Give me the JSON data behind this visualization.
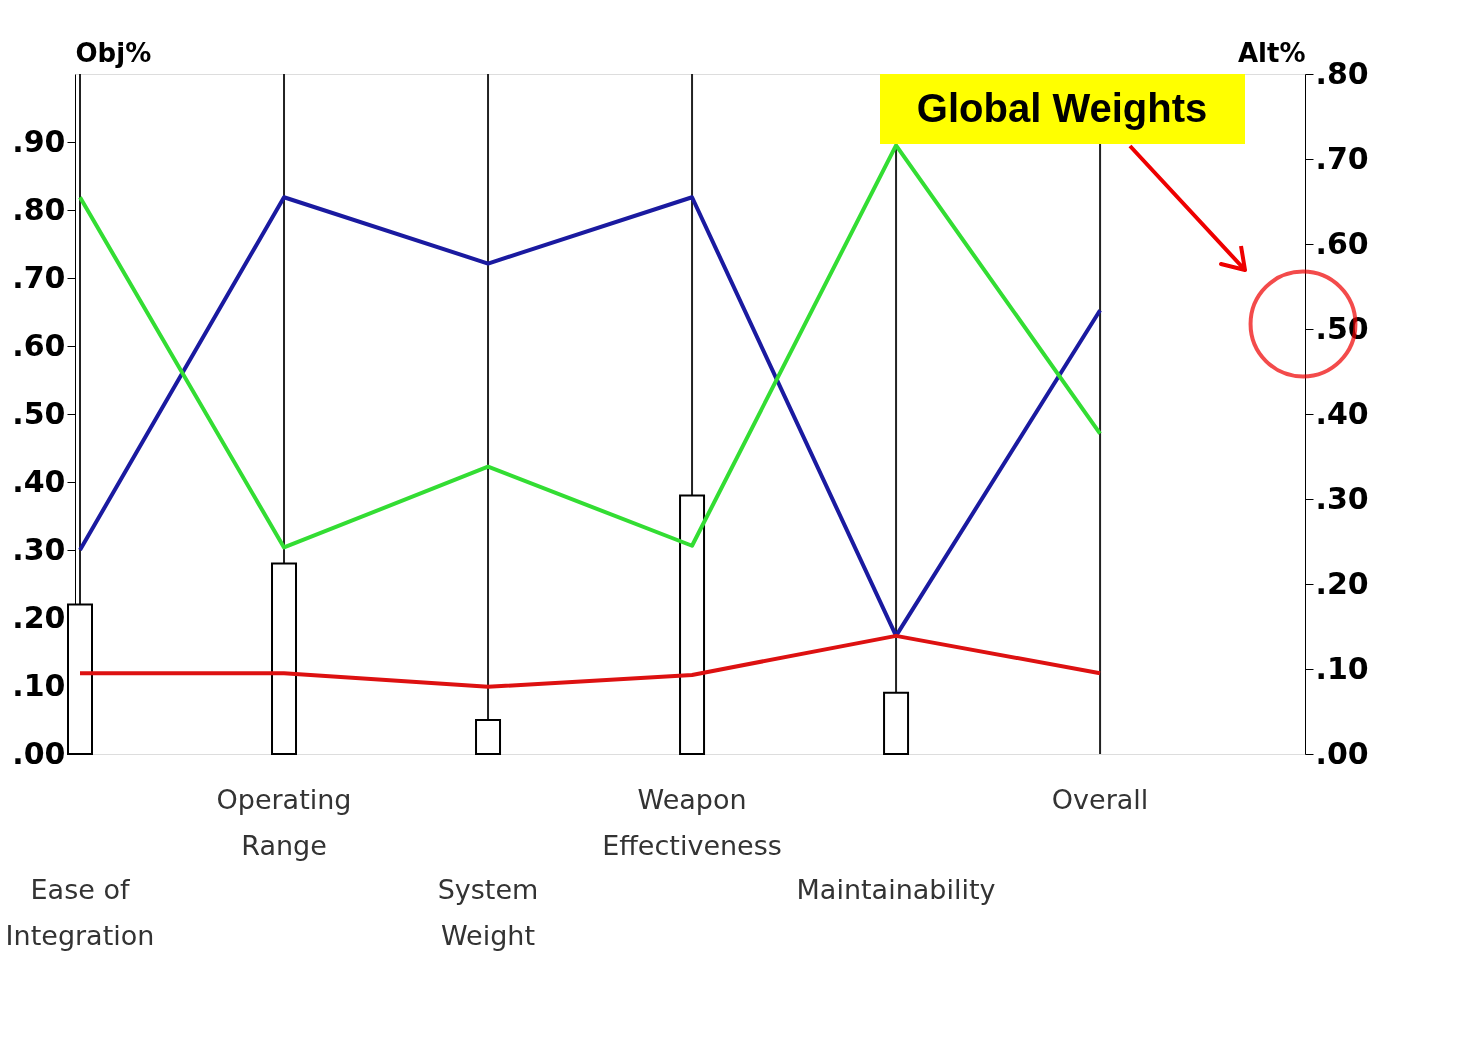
{
  "chart_data": {
    "type": "line",
    "categories": [
      "Ease of\nIntegration",
      "Operating\nRange",
      "System\nWeight",
      "Weapon\nEffectiveness",
      "Maintainability",
      "Overall"
    ],
    "series": [
      {
        "type": "bar",
        "axis": "y",
        "color": "#ffffff",
        "values": [
          0.22,
          0.28,
          0.05,
          0.38,
          0.09,
          null
        ]
      },
      {
        "axis": "y2",
        "color": "#1a1aa0",
        "values": [
          0.24,
          0.655,
          0.577,
          0.655,
          0.139,
          0.522
        ]
      },
      {
        "axis": "y2",
        "color": "#33dd33",
        "values": [
          0.655,
          0.243,
          0.338,
          0.245,
          0.716,
          0.377
        ]
      },
      {
        "axis": "y2",
        "color": "#dd1111",
        "values": [
          0.095,
          0.095,
          0.079,
          0.093,
          0.139,
          0.095
        ]
      }
    ],
    "ylabel": "Obj%",
    "y2label": "Alt%",
    "ylim": [
      0,
      1.0
    ],
    "yticks": [
      {
        "value": 0,
        "label": ".00"
      },
      {
        "value": 0.1,
        "label": ".10"
      },
      {
        "value": 0.2,
        "label": ".20"
      },
      {
        "value": 0.3,
        "label": ".30"
      },
      {
        "value": 0.4,
        "label": ".40"
      },
      {
        "value": 0.5,
        "label": ".50"
      },
      {
        "value": 0.6,
        "label": ".60"
      },
      {
        "value": 0.7,
        "label": ".70"
      },
      {
        "value": 0.8,
        "label": ".80"
      },
      {
        "value": 0.9,
        "label": ".90"
      }
    ],
    "y2lim": [
      0,
      0.8
    ],
    "y2ticks": [
      {
        "value": 0,
        "label": ".00"
      },
      {
        "value": 0.1,
        "label": ".10"
      },
      {
        "value": 0.2,
        "label": ".20"
      },
      {
        "value": 0.3,
        "label": ".30"
      },
      {
        "value": 0.4,
        "label": ".40"
      },
      {
        "value": 0.5,
        "label": ".50"
      },
      {
        "value": 0.6,
        "label": ".60"
      },
      {
        "value": 0.7,
        "label": ".70"
      },
      {
        "value": 0.8,
        "label": ".80"
      }
    ],
    "grid": "x",
    "annotations": [
      "Global Weights"
    ]
  }
}
